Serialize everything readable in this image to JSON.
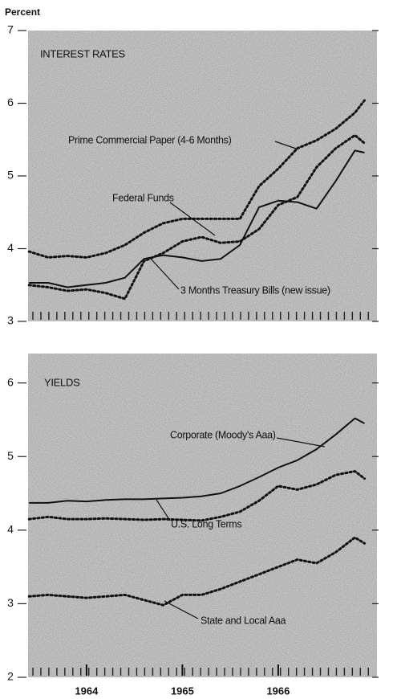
{
  "unit_label": "Percent",
  "chart_data": [
    {
      "type": "line",
      "title": "INTEREST RATES",
      "xlim": [
        1963.39,
        1967.03
      ],
      "x": [
        1963.4,
        1963.6,
        1963.8,
        1964.0,
        1964.2,
        1964.4,
        1964.6,
        1964.8,
        1965.0,
        1965.2,
        1965.4,
        1965.6,
        1965.8,
        1966.0,
        1966.2,
        1966.4,
        1966.6,
        1966.8,
        1966.9
      ],
      "ylim": [
        3,
        7
      ],
      "yticks": [
        3,
        4,
        5,
        6,
        7
      ],
      "series": [
        {
          "name": "Prime Commercial Paper (4-6 Months)",
          "color": "#111111",
          "style": "dotted",
          "values": [
            3.96,
            3.88,
            3.9,
            3.88,
            3.94,
            4.05,
            4.22,
            4.35,
            4.41,
            4.41,
            4.41,
            4.41,
            4.86,
            5.1,
            5.38,
            5.49,
            5.65,
            5.87,
            6.04
          ]
        },
        {
          "name": "Federal Funds",
          "color": "#111111",
          "style": "dotted",
          "values": [
            3.5,
            3.47,
            3.42,
            3.44,
            3.39,
            3.31,
            3.83,
            3.94,
            4.1,
            4.16,
            4.08,
            4.1,
            4.27,
            4.6,
            4.71,
            5.12,
            5.38,
            5.56,
            5.45
          ]
        },
        {
          "name": "3 Months Treasury Bills (new issue)",
          "color": "#111111",
          "style": "solid",
          "values": [
            3.53,
            3.53,
            3.47,
            3.5,
            3.53,
            3.6,
            3.86,
            3.91,
            3.88,
            3.83,
            3.86,
            4.05,
            4.57,
            4.66,
            4.64,
            4.55,
            4.93,
            5.35,
            5.32
          ]
        }
      ]
    },
    {
      "type": "line",
      "title": "YIELDS",
      "xlim": [
        1963.39,
        1967.03
      ],
      "xticks": [
        {
          "value": 1964,
          "label": "1964"
        },
        {
          "value": 1965,
          "label": "1965"
        },
        {
          "value": 1966,
          "label": "1966"
        }
      ],
      "x": [
        1963.4,
        1963.6,
        1963.8,
        1964.0,
        1964.2,
        1964.4,
        1964.6,
        1964.8,
        1965.0,
        1965.2,
        1965.4,
        1965.6,
        1965.8,
        1966.0,
        1966.2,
        1966.4,
        1966.6,
        1966.8,
        1966.9
      ],
      "ylim": [
        2,
        6.4
      ],
      "yticks": [
        2,
        3,
        4,
        5,
        6
      ],
      "series": [
        {
          "name": "Corporate (Moody's Aaa)",
          "color": "#111111",
          "style": "solid",
          "values": [
            4.37,
            4.37,
            4.4,
            4.39,
            4.41,
            4.42,
            4.42,
            4.43,
            4.44,
            4.46,
            4.5,
            4.6,
            4.72,
            4.85,
            4.95,
            5.1,
            5.3,
            5.52,
            5.45
          ]
        },
        {
          "name": "U.S. Long Terms",
          "color": "#111111",
          "style": "dotted",
          "values": [
            4.15,
            4.18,
            4.15,
            4.15,
            4.16,
            4.15,
            4.14,
            4.15,
            4.14,
            4.13,
            4.18,
            4.25,
            4.4,
            4.6,
            4.55,
            4.62,
            4.75,
            4.8,
            4.7
          ]
        },
        {
          "name": "State and Local Aaa",
          "color": "#111111",
          "style": "dotted",
          "values": [
            3.1,
            3.12,
            3.1,
            3.08,
            3.1,
            3.12,
            3.05,
            2.98,
            3.12,
            3.12,
            3.2,
            3.3,
            3.4,
            3.5,
            3.6,
            3.55,
            3.7,
            3.9,
            3.82
          ]
        }
      ]
    }
  ]
}
